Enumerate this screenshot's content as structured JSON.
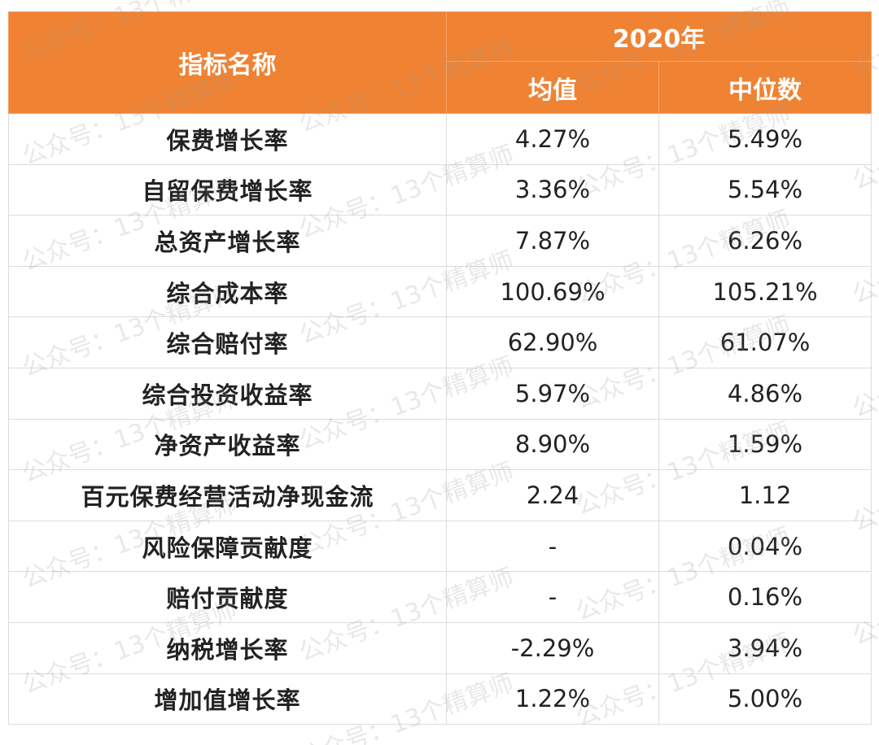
{
  "table": {
    "header": {
      "name_col": "指标名称",
      "year": "2020年",
      "mean": "均值",
      "median": "中位数"
    },
    "rows": [
      {
        "name": "保费增长率",
        "mean": "4.27%",
        "median": "5.49%"
      },
      {
        "name": "自留保费增长率",
        "mean": "3.36%",
        "median": "5.54%"
      },
      {
        "name": "总资产增长率",
        "mean": "7.87%",
        "median": "6.26%"
      },
      {
        "name": "综合成本率",
        "mean": "100.69%",
        "median": "105.21%"
      },
      {
        "name": "综合赔付率",
        "mean": "62.90%",
        "median": "61.07%"
      },
      {
        "name": "综合投资收益率",
        "mean": "5.97%",
        "median": "4.86%"
      },
      {
        "name": "净资产收益率",
        "mean": "8.90%",
        "median": "1.59%"
      },
      {
        "name": "百元保费经营活动净现金流",
        "mean": "2.24",
        "median": "1.12"
      },
      {
        "name": "风险保障贡献度",
        "mean": "-",
        "median": "0.04%"
      },
      {
        "name": "赔付贡献度",
        "mean": "-",
        "median": "0.16%"
      },
      {
        "name": "纳税增长率",
        "mean": "-2.29%",
        "median": "3.94%"
      },
      {
        "name": "增加值增长率",
        "mean": "1.22%",
        "median": "5.00%"
      }
    ]
  },
  "watermark": {
    "text": "公众号：13个精算师"
  },
  "colors": {
    "header_bg": "#ef8333",
    "header_text": "#ffffff",
    "body_text": "#222222",
    "grid": "#dcdcdc"
  }
}
